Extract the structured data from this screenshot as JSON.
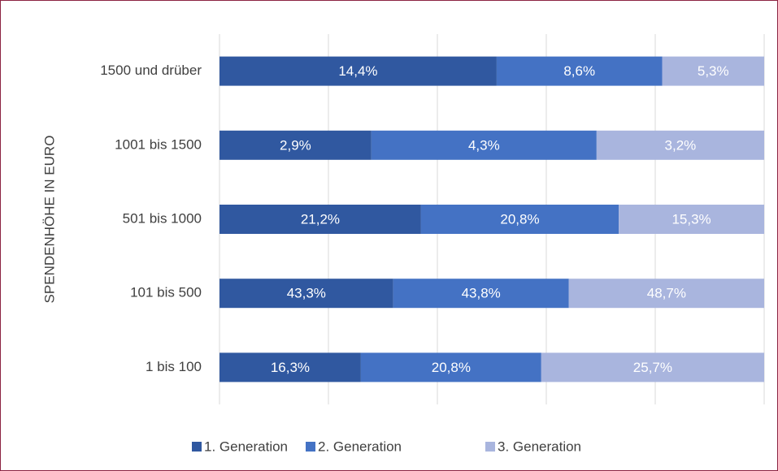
{
  "chart_data": {
    "type": "bar",
    "orientation": "horizontal",
    "stacked": "percent",
    "y_axis_label": "SPENDENHÖHE IN EURO",
    "categories": [
      "1500 und drüber",
      "1001 bis 1500",
      "501 bis 1000",
      "101 bis 500",
      "1 bis 100"
    ],
    "series": [
      {
        "name": "1. Generation",
        "color": "#3058a0",
        "values": [
          14.4,
          2.9,
          21.2,
          43.3,
          16.3
        ],
        "value_labels": [
          "14,4%",
          "2,9%",
          "21,2%",
          "43,3%",
          "16,3%"
        ]
      },
      {
        "name": "2. Generation",
        "color": "#4472c4",
        "values": [
          8.6,
          4.3,
          20.8,
          43.8,
          20.8
        ],
        "value_labels": [
          "8,6%",
          "4,3%",
          "20,8%",
          "43,8%",
          "20,8%"
        ]
      },
      {
        "name": "3. Generation",
        "color": "#a9b5de",
        "values": [
          5.3,
          3.2,
          15.3,
          48.7,
          25.7
        ],
        "value_labels": [
          "5,3%",
          "3,2%",
          "15,3%",
          "48,7%",
          "25,7%"
        ]
      }
    ],
    "xlim": [
      0,
      100
    ],
    "xticks": [
      0,
      20,
      40,
      60,
      80,
      100
    ],
    "grid": true,
    "legend": "bottom"
  }
}
